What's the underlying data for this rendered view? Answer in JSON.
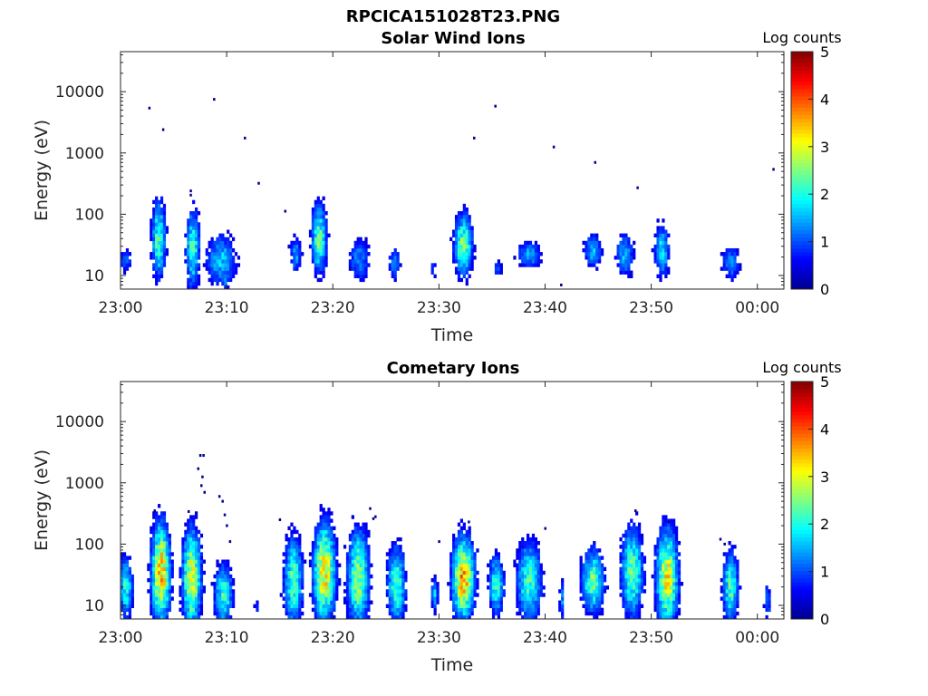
{
  "figure": {
    "title": "RPCICA151028T23.PNG"
  },
  "colormap": [
    "#00008f",
    "#0000ff",
    "#0080ff",
    "#00ffff",
    "#80ff80",
    "#ffff00",
    "#ff8000",
    "#ff0000",
    "#800000"
  ],
  "chart_data": [
    {
      "type": "heatmap",
      "title": "Solar Wind Ions",
      "xlabel": "Time",
      "ylabel": "Energy (eV)",
      "x_ticks": [
        "23:00",
        "23:10",
        "23:20",
        "23:30",
        "23:40",
        "23:50",
        "00:00"
      ],
      "x_tick_minutes": [
        0,
        10,
        20,
        30,
        40,
        50,
        60
      ],
      "xlim_minutes": [
        0,
        62.5
      ],
      "y_scale": "log",
      "y_ticks": [
        "10",
        "100",
        "1000",
        "10000"
      ],
      "y_tick_values": [
        10,
        100,
        1000,
        10000
      ],
      "ylim": [
        6,
        45000
      ],
      "colorbar": {
        "label": "Log counts",
        "ticks": [
          "0",
          "1",
          "2",
          "3",
          "4",
          "5"
        ],
        "range": [
          0,
          5
        ]
      },
      "blobs": [
        {
          "t": 0.5,
          "e": 18,
          "dt": 0.5,
          "de": 0.15,
          "c": 1.0
        },
        {
          "t": 3.6,
          "e": 40,
          "dt": 0.45,
          "de": 0.45,
          "c": 2.2
        },
        {
          "t": 6.8,
          "e": 28,
          "dt": 0.45,
          "de": 0.45,
          "c": 2.1
        },
        {
          "t": 9.5,
          "e": 18,
          "dt": 1.0,
          "de": 0.3,
          "c": 1.6
        },
        {
          "t": 9.9,
          "e": 9,
          "dt": 0.25,
          "de": 0.25,
          "c": 1.2
        },
        {
          "t": 16.5,
          "e": 22,
          "dt": 0.4,
          "de": 0.2,
          "c": 1.4
        },
        {
          "t": 18.7,
          "e": 40,
          "dt": 0.5,
          "de": 0.4,
          "c": 2.3
        },
        {
          "t": 22.5,
          "e": 18,
          "dt": 0.7,
          "de": 0.25,
          "c": 1.3
        },
        {
          "t": 25.8,
          "e": 16,
          "dt": 0.4,
          "de": 0.2,
          "c": 1.2
        },
        {
          "t": 29.5,
          "e": 13,
          "dt": 0.2,
          "de": 0.1,
          "c": 1.0
        },
        {
          "t": 32.3,
          "e": 32,
          "dt": 0.6,
          "de": 0.35,
          "c": 2.4
        },
        {
          "t": 35.5,
          "e": 13,
          "dt": 0.3,
          "de": 0.1,
          "c": 1.0
        },
        {
          "t": 38.5,
          "e": 22,
          "dt": 0.8,
          "de": 0.15,
          "c": 1.5
        },
        {
          "t": 44.5,
          "e": 25,
          "dt": 0.6,
          "de": 0.2,
          "c": 1.5
        },
        {
          "t": 47.5,
          "e": 22,
          "dt": 0.6,
          "de": 0.25,
          "c": 1.5
        },
        {
          "t": 51.0,
          "e": 25,
          "dt": 0.5,
          "de": 0.3,
          "c": 1.8
        },
        {
          "t": 57.5,
          "e": 16,
          "dt": 0.6,
          "de": 0.2,
          "c": 1.3
        }
      ],
      "sparse": [
        [
          2.7,
          5400
        ],
        [
          4.0,
          2400
        ],
        [
          8.8,
          7500
        ],
        [
          11.7,
          1750
        ],
        [
          13.0,
          320
        ],
        [
          15.5,
          112
        ],
        [
          33.3,
          1750
        ],
        [
          35.3,
          5800
        ],
        [
          40.8,
          1250
        ],
        [
          44.7,
          700
        ],
        [
          48.7,
          270
        ],
        [
          61.5,
          540
        ],
        [
          6.6,
          240
        ],
        [
          6.6,
          205
        ],
        [
          41.5,
          7
        ]
      ]
    },
    {
      "type": "heatmap",
      "title": "Cometary Ions",
      "xlabel": "Time",
      "ylabel": "Energy (eV)",
      "x_ticks": [
        "23:00",
        "23:10",
        "23:20",
        "23:30",
        "23:40",
        "23:50",
        "00:00"
      ],
      "x_tick_minutes": [
        0,
        10,
        20,
        30,
        40,
        50,
        60
      ],
      "xlim_minutes": [
        0,
        62.5
      ],
      "y_scale": "log",
      "y_ticks": [
        "10",
        "100",
        "1000",
        "10000"
      ],
      "y_tick_values": [
        10,
        100,
        1000,
        10000
      ],
      "ylim": [
        6,
        45000
      ],
      "colorbar": {
        "label": "Log counts",
        "ticks": [
          "0",
          "1",
          "2",
          "3",
          "4",
          "5"
        ],
        "range": [
          0,
          5
        ]
      },
      "blobs": [
        {
          "t": 0.5,
          "e": 20,
          "dt": 0.45,
          "de": 0.35,
          "c": 2.0
        },
        {
          "t": 3.8,
          "e": 35,
          "dt": 0.6,
          "de": 0.55,
          "c": 3.4
        },
        {
          "t": 6.7,
          "e": 28,
          "dt": 0.6,
          "de": 0.55,
          "c": 3.0
        },
        {
          "t": 9.7,
          "e": 15,
          "dt": 0.6,
          "de": 0.35,
          "c": 2.1
        },
        {
          "t": 16.3,
          "e": 25,
          "dt": 0.6,
          "de": 0.5,
          "c": 2.3
        },
        {
          "t": 19.2,
          "e": 35,
          "dt": 0.7,
          "de": 0.55,
          "c": 3.2
        },
        {
          "t": 22.4,
          "e": 28,
          "dt": 0.7,
          "de": 0.55,
          "c": 2.6
        },
        {
          "t": 26.0,
          "e": 22,
          "dt": 0.6,
          "de": 0.45,
          "c": 2.2
        },
        {
          "t": 29.6,
          "e": 15,
          "dt": 0.25,
          "de": 0.2,
          "c": 1.5
        },
        {
          "t": 32.3,
          "e": 28,
          "dt": 0.7,
          "de": 0.45,
          "c": 3.5
        },
        {
          "t": 35.4,
          "e": 22,
          "dt": 0.5,
          "de": 0.35,
          "c": 2.0
        },
        {
          "t": 38.5,
          "e": 25,
          "dt": 0.8,
          "de": 0.45,
          "c": 2.2
        },
        {
          "t": 41.6,
          "e": 12,
          "dt": 0.2,
          "de": 0.25,
          "c": 1.2
        },
        {
          "t": 44.5,
          "e": 25,
          "dt": 0.7,
          "de": 0.35,
          "c": 2.4
        },
        {
          "t": 48.2,
          "e": 35,
          "dt": 0.7,
          "de": 0.5,
          "c": 2.4
        },
        {
          "t": 51.5,
          "e": 28,
          "dt": 0.7,
          "de": 0.55,
          "c": 3.0
        },
        {
          "t": 57.5,
          "e": 20,
          "dt": 0.5,
          "de": 0.4,
          "c": 2.2
        },
        {
          "t": 61.0,
          "e": 12,
          "dt": 0.25,
          "de": 0.2,
          "c": 1.2
        },
        {
          "t": 12.8,
          "e": 10,
          "dt": 0.15,
          "de": 0.15,
          "c": 0.8
        }
      ],
      "sparse": [
        [
          7.5,
          2800
        ],
        [
          7.8,
          2800
        ],
        [
          7.3,
          1700
        ],
        [
          7.7,
          1250
        ],
        [
          7.6,
          900
        ],
        [
          7.9,
          700
        ],
        [
          9.3,
          600
        ],
        [
          9.6,
          500
        ],
        [
          9.8,
          300
        ],
        [
          10.0,
          200
        ],
        [
          10.3,
          110
        ],
        [
          3.2,
          350
        ],
        [
          6.4,
          340
        ],
        [
          15.0,
          250
        ],
        [
          23.5,
          380
        ],
        [
          23.8,
          260
        ],
        [
          24.0,
          280
        ],
        [
          30.0,
          110
        ],
        [
          32.8,
          230
        ],
        [
          40.0,
          180
        ],
        [
          48.5,
          350
        ],
        [
          51.6,
          230
        ],
        [
          56.5,
          120
        ],
        [
          56.9,
          100
        ]
      ]
    }
  ]
}
